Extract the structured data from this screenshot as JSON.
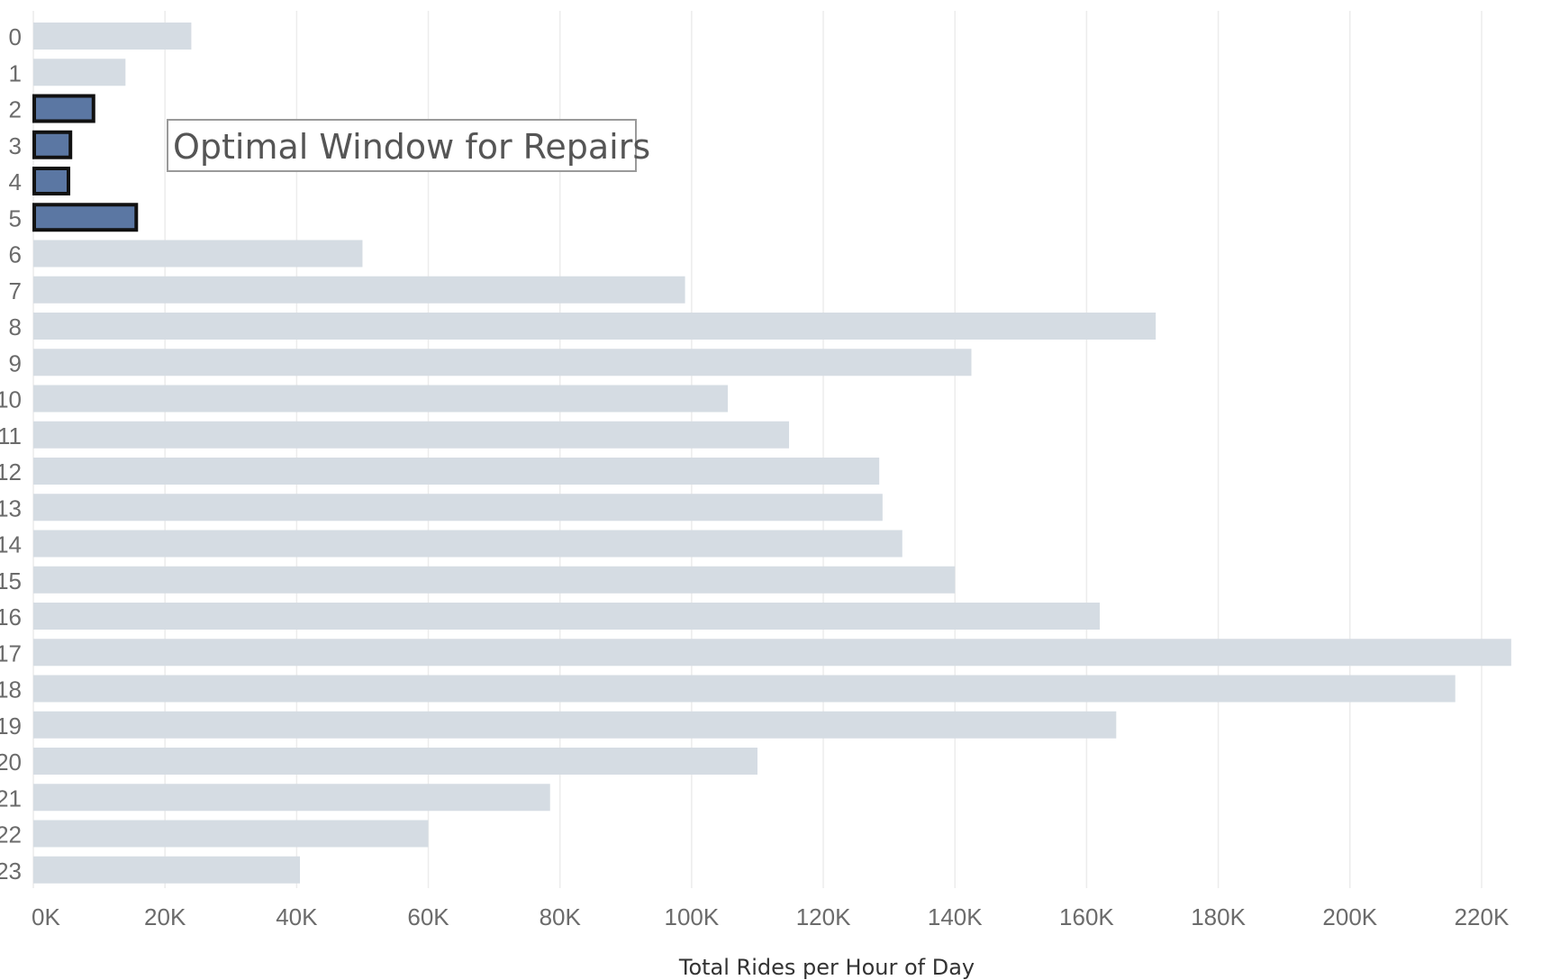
{
  "chart_data": {
    "type": "bar",
    "orientation": "horizontal",
    "categories": [
      "0",
      "1",
      "2",
      "3",
      "4",
      "5",
      "6",
      "7",
      "8",
      "9",
      "10",
      "11",
      "12",
      "13",
      "14",
      "15",
      "16",
      "17",
      "18",
      "19",
      "20",
      "21",
      "22",
      "23"
    ],
    "values": [
      24000,
      14000,
      9000,
      5500,
      5200,
      15500,
      50000,
      99000,
      170500,
      142500,
      105500,
      114800,
      128500,
      129000,
      132000,
      140000,
      162000,
      224500,
      216000,
      164500,
      110000,
      78500,
      60000,
      40500
    ],
    "highlighted": [
      "2",
      "3",
      "4",
      "5"
    ],
    "xlabel": "Total Rides per Hour of Day",
    "xlim": [
      0,
      225000
    ],
    "xticks": [
      {
        "value": 0,
        "label": "0K"
      },
      {
        "value": 20000,
        "label": "20K"
      },
      {
        "value": 40000,
        "label": "40K"
      },
      {
        "value": 60000,
        "label": "60K"
      },
      {
        "value": 80000,
        "label": "80K"
      },
      {
        "value": 100000,
        "label": "100K"
      },
      {
        "value": 120000,
        "label": "120K"
      },
      {
        "value": 140000,
        "label": "140K"
      },
      {
        "value": 160000,
        "label": "160K"
      },
      {
        "value": 180000,
        "label": "180K"
      },
      {
        "value": 200000,
        "label": "200K"
      },
      {
        "value": 220000,
        "label": "220K"
      }
    ],
    "annotation": "Optimal Window for Repairs",
    "grid": true,
    "colors": {
      "bar": "#d5dce3",
      "highlight": "#5b77a3",
      "highlight_border": "#111111",
      "grid": "#ececec",
      "annotation_border": "#9a9a9a"
    }
  }
}
